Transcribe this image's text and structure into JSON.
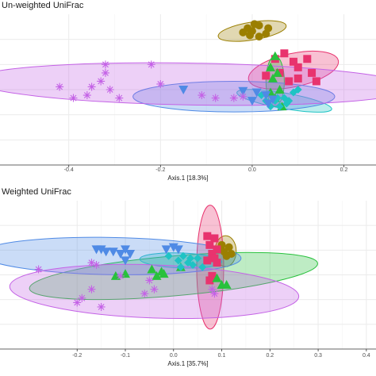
{
  "chart_data": [
    {
      "type": "scatter",
      "title": "Un-weighted UniFrac",
      "xlabel": "Axis.1   [18.3%]",
      "xlim": [
        -0.55,
        0.27
      ],
      "ylim": [
        -0.33,
        0.21
      ],
      "x_ticks": [
        -0.4,
        -0.2,
        0.0,
        0.2
      ],
      "x_tick_labels": [
        "-0.4",
        "-0.2",
        "0.0",
        "0.2"
      ],
      "grid": true,
      "series": [
        {
          "color": "#9b7f00",
          "marker": "circle",
          "points": [
            [
              -0.01,
              0.16
            ],
            [
              0.005,
              0.175
            ],
            [
              0.015,
              0.17
            ],
            [
              0.0,
              0.15
            ],
            [
              -0.02,
              0.145
            ],
            [
              0.03,
              0.14
            ],
            [
              0.015,
              0.13
            ],
            [
              0.035,
              0.16
            ],
            [
              -0.005,
              0.135
            ]
          ],
          "ellipse": {
            "cx": 0.0,
            "cy": 0.15,
            "rx": 0.075,
            "ry": 0.032,
            "angle": 9
          }
        },
        {
          "color": "#e8336e",
          "marker": "square",
          "points": [
            [
              0.05,
              0.05
            ],
            [
              0.07,
              0.07
            ],
            [
              0.09,
              0.04
            ],
            [
              0.1,
              0.02
            ],
            [
              0.13,
              0.0
            ],
            [
              0.06,
              0.0
            ],
            [
              0.1,
              -0.02
            ],
            [
              0.14,
              -0.03
            ],
            [
              0.08,
              -0.03
            ],
            [
              0.12,
              0.05
            ],
            [
              0.03,
              -0.01
            ]
          ],
          "ellipse": {
            "cx": 0.09,
            "cy": 0.01,
            "rx": 0.1,
            "ry": 0.06,
            "angle": 12
          }
        },
        {
          "color": "#28c13c",
          "marker": "triangle-up",
          "points": [
            [
              0.05,
              0.06
            ],
            [
              0.04,
              0.02
            ],
            [
              0.055,
              0.0
            ],
            [
              0.045,
              -0.02
            ],
            [
              0.06,
              -0.06
            ],
            [
              0.05,
              -0.09
            ],
            [
              0.065,
              -0.12
            ],
            [
              0.04,
              -0.07
            ]
          ],
          "ellipse": {
            "cx": 0.05,
            "cy": -0.03,
            "rx": 0.02,
            "ry": 0.09,
            "angle": 0
          }
        },
        {
          "color": "#1fc3c4",
          "marker": "diamond",
          "points": [
            [
              0.02,
              -0.08
            ],
            [
              0.05,
              -0.1
            ],
            [
              0.07,
              -0.09
            ],
            [
              0.09,
              -0.07
            ],
            [
              0.04,
              -0.12
            ],
            [
              0.06,
              -0.12
            ],
            [
              0.08,
              -0.1
            ],
            [
              0.1,
              -0.06
            ],
            [
              0.03,
              -0.1
            ],
            [
              0.075,
              -0.11
            ],
            [
              0.055,
              -0.09
            ]
          ],
          "ellipse": {
            "cx": 0.07,
            "cy": -0.1,
            "rx": 0.105,
            "ry": 0.028,
            "angle": -10
          }
        },
        {
          "color": "#4f8ae5",
          "marker": "triangle-down",
          "points": [
            [
              -0.15,
              -0.06
            ],
            [
              -0.02,
              -0.065
            ],
            [
              0.01,
              -0.07
            ],
            [
              0.03,
              -0.08
            ],
            [
              0.0,
              -0.1
            ],
            [
              0.035,
              -0.11
            ],
            [
              0.045,
              -0.095
            ]
          ],
          "ellipse": {
            "cx": -0.04,
            "cy": -0.085,
            "rx": 0.22,
            "ry": 0.055,
            "angle": 0
          }
        },
        {
          "color": "#c462e6",
          "marker": "asterisk",
          "points": [
            [
              -0.32,
              0.03
            ],
            [
              -0.22,
              0.03
            ],
            [
              -0.32,
              0.0
            ],
            [
              -0.33,
              -0.03
            ],
            [
              -0.42,
              -0.05
            ],
            [
              -0.2,
              -0.04
            ],
            [
              -0.35,
              -0.05
            ],
            [
              -0.31,
              -0.06
            ],
            [
              -0.39,
              -0.09
            ],
            [
              -0.36,
              -0.08
            ],
            [
              -0.29,
              -0.09
            ],
            [
              -0.08,
              -0.09
            ],
            [
              -0.04,
              -0.09
            ],
            [
              -0.02,
              -0.085
            ],
            [
              -0.11,
              -0.08
            ]
          ],
          "ellipse": {
            "cx": -0.13,
            "cy": -0.04,
            "rx": 0.48,
            "ry": 0.075,
            "angle": -1
          }
        }
      ]
    },
    {
      "type": "scatter",
      "title": "Weighted UniFrac",
      "xlabel": "Axis.1   [35.7%]",
      "xlim": [
        -0.36,
        0.42
      ],
      "ylim": [
        -0.165,
        0.17
      ],
      "x_ticks": [
        -0.2,
        -0.1,
        0.0,
        0.1,
        0.2,
        0.3,
        0.4
      ],
      "x_tick_labels": [
        "-0.2",
        "-0.1",
        "0.0",
        "0.1",
        "0.2",
        "0.3",
        "0.4"
      ],
      "grid": true,
      "series": [
        {
          "color": "#9b7f00",
          "marker": "circle",
          "points": [
            [
              0.1,
              0.07
            ],
            [
              0.115,
              0.065
            ],
            [
              0.105,
              0.055
            ],
            [
              0.12,
              0.05
            ],
            [
              0.11,
              0.045
            ],
            [
              0.095,
              0.06
            ]
          ],
          "ellipse": {
            "cx": 0.108,
            "cy": 0.056,
            "rx": 0.022,
            "ry": 0.035,
            "angle": 0
          }
        },
        {
          "color": "#e8336e",
          "marker": "square",
          "points": [
            [
              0.07,
              0.09
            ],
            [
              0.085,
              0.085
            ],
            [
              0.075,
              0.07
            ],
            [
              0.09,
              0.06
            ],
            [
              0.08,
              0.05
            ],
            [
              0.085,
              0.04
            ],
            [
              0.07,
              0.035
            ],
            [
              0.09,
              0.03
            ],
            [
              0.08,
              0.0
            ],
            [
              0.075,
              -0.01
            ]
          ],
          "ellipse": {
            "cx": 0.076,
            "cy": 0.02,
            "rx": 0.028,
            "ry": 0.14,
            "angle": 0
          }
        },
        {
          "color": "#28c13c",
          "marker": "triangle-up",
          "points": [
            [
              -0.12,
              0.0
            ],
            [
              -0.1,
              0.005
            ],
            [
              -0.02,
              0.005
            ],
            [
              -0.035,
              0.0
            ],
            [
              -0.045,
              0.015
            ],
            [
              -0.025,
              0.01
            ],
            [
              0.015,
              0.02
            ],
            [
              0.09,
              -0.005
            ],
            [
              0.1,
              -0.02
            ],
            [
              0.11,
              -0.02
            ]
          ],
          "ellipse": {
            "cx": 0.0,
            "cy": 0.0,
            "rx": 0.3,
            "ry": 0.045,
            "angle": 5
          }
        },
        {
          "color": "#1fc3c4",
          "marker": "diamond",
          "points": [
            [
              -0.01,
              0.045
            ],
            [
              0.02,
              0.045
            ],
            [
              0.035,
              0.04
            ],
            [
              0.05,
              0.04
            ],
            [
              0.03,
              0.03
            ],
            [
              0.01,
              0.035
            ],
            [
              0.04,
              0.025
            ],
            [
              0.06,
              0.02
            ],
            [
              0.015,
              0.02
            ]
          ],
          "ellipse": {
            "cx": 0.015,
            "cy": 0.035,
            "rx": 0.085,
            "ry": 0.017,
            "angle": -2
          }
        },
        {
          "color": "#4f8ae5",
          "marker": "triangle-down",
          "points": [
            [
              -0.16,
              0.06
            ],
            [
              -0.15,
              0.06
            ],
            [
              -0.14,
              0.055
            ],
            [
              -0.1,
              0.06
            ],
            [
              -0.11,
              0.05
            ],
            [
              -0.125,
              0.055
            ],
            [
              -0.1,
              0.035
            ],
            [
              -0.09,
              0.05
            ],
            [
              -0.015,
              0.06
            ],
            [
              0.0,
              0.065
            ],
            [
              0.01,
              0.06
            ]
          ],
          "ellipse": {
            "cx": -0.13,
            "cy": 0.045,
            "rx": 0.27,
            "ry": 0.042,
            "angle": -1
          }
        },
        {
          "color": "#c462e6",
          "marker": "asterisk",
          "points": [
            [
              -0.28,
              0.015
            ],
            [
              -0.17,
              0.03
            ],
            [
              -0.16,
              0.025
            ],
            [
              -0.11,
              0.0
            ],
            [
              -0.05,
              -0.01
            ],
            [
              -0.04,
              -0.03
            ],
            [
              -0.06,
              -0.04
            ],
            [
              -0.17,
              -0.03
            ],
            [
              -0.2,
              -0.06
            ],
            [
              -0.19,
              -0.05
            ],
            [
              -0.15,
              -0.07
            ],
            [
              0.08,
              -0.03
            ],
            [
              0.085,
              -0.04
            ]
          ],
          "ellipse": {
            "cx": -0.04,
            "cy": -0.035,
            "rx": 0.3,
            "ry": 0.06,
            "angle": -2
          }
        }
      ]
    }
  ]
}
